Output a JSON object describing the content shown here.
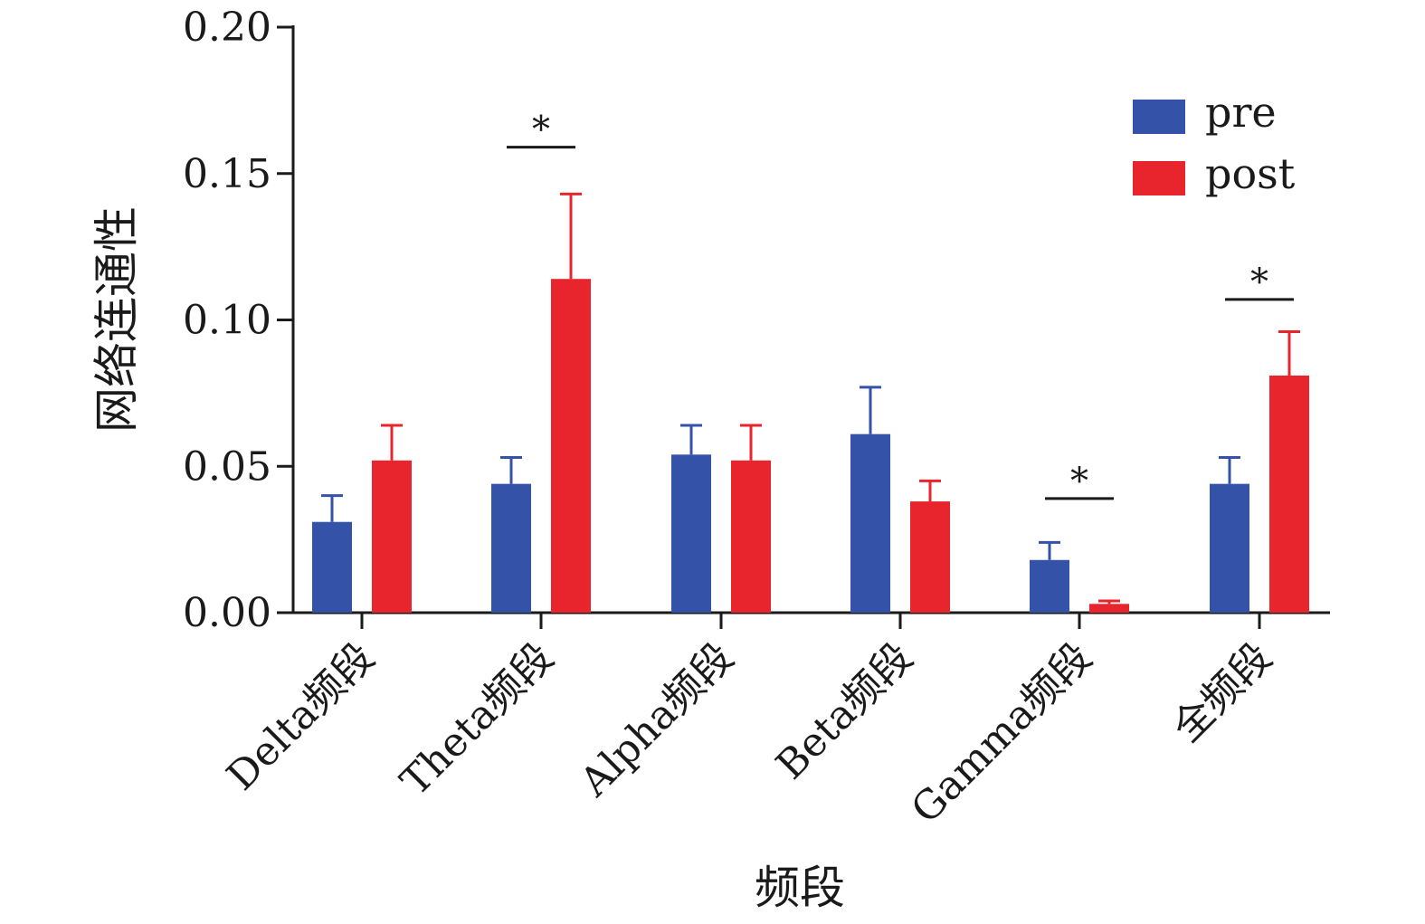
{
  "chart_data": {
    "type": "bar",
    "title": "",
    "xlabel": "频段",
    "ylabel": "网络连通性",
    "ylim": [
      0,
      0.2
    ],
    "yticks": [
      "0.00",
      "0.05",
      "0.10",
      "0.15",
      "0.20"
    ],
    "categories": [
      "Delta频段",
      "Theta频段",
      "Alpha频段",
      "Beta频段",
      "Gamma频段",
      "全频段"
    ],
    "series": [
      {
        "name": "pre",
        "color": "#3452a8",
        "values": [
          0.031,
          0.044,
          0.054,
          0.061,
          0.018,
          0.044
        ],
        "errors": [
          0.009,
          0.009,
          0.01,
          0.016,
          0.006,
          0.009
        ]
      },
      {
        "name": "post",
        "color": "#e8252d",
        "values": [
          0.052,
          0.114,
          0.052,
          0.038,
          0.003,
          0.081
        ],
        "errors": [
          0.012,
          0.029,
          0.012,
          0.007,
          0.001,
          0.015
        ]
      }
    ],
    "significance": [
      {
        "category": 1,
        "label": "*",
        "y": 0.159
      },
      {
        "category": 4,
        "label": "*",
        "y": 0.039
      },
      {
        "category": 5,
        "label": "*",
        "y": 0.107
      }
    ],
    "legend": {
      "position": "top-right"
    },
    "grid": false
  }
}
